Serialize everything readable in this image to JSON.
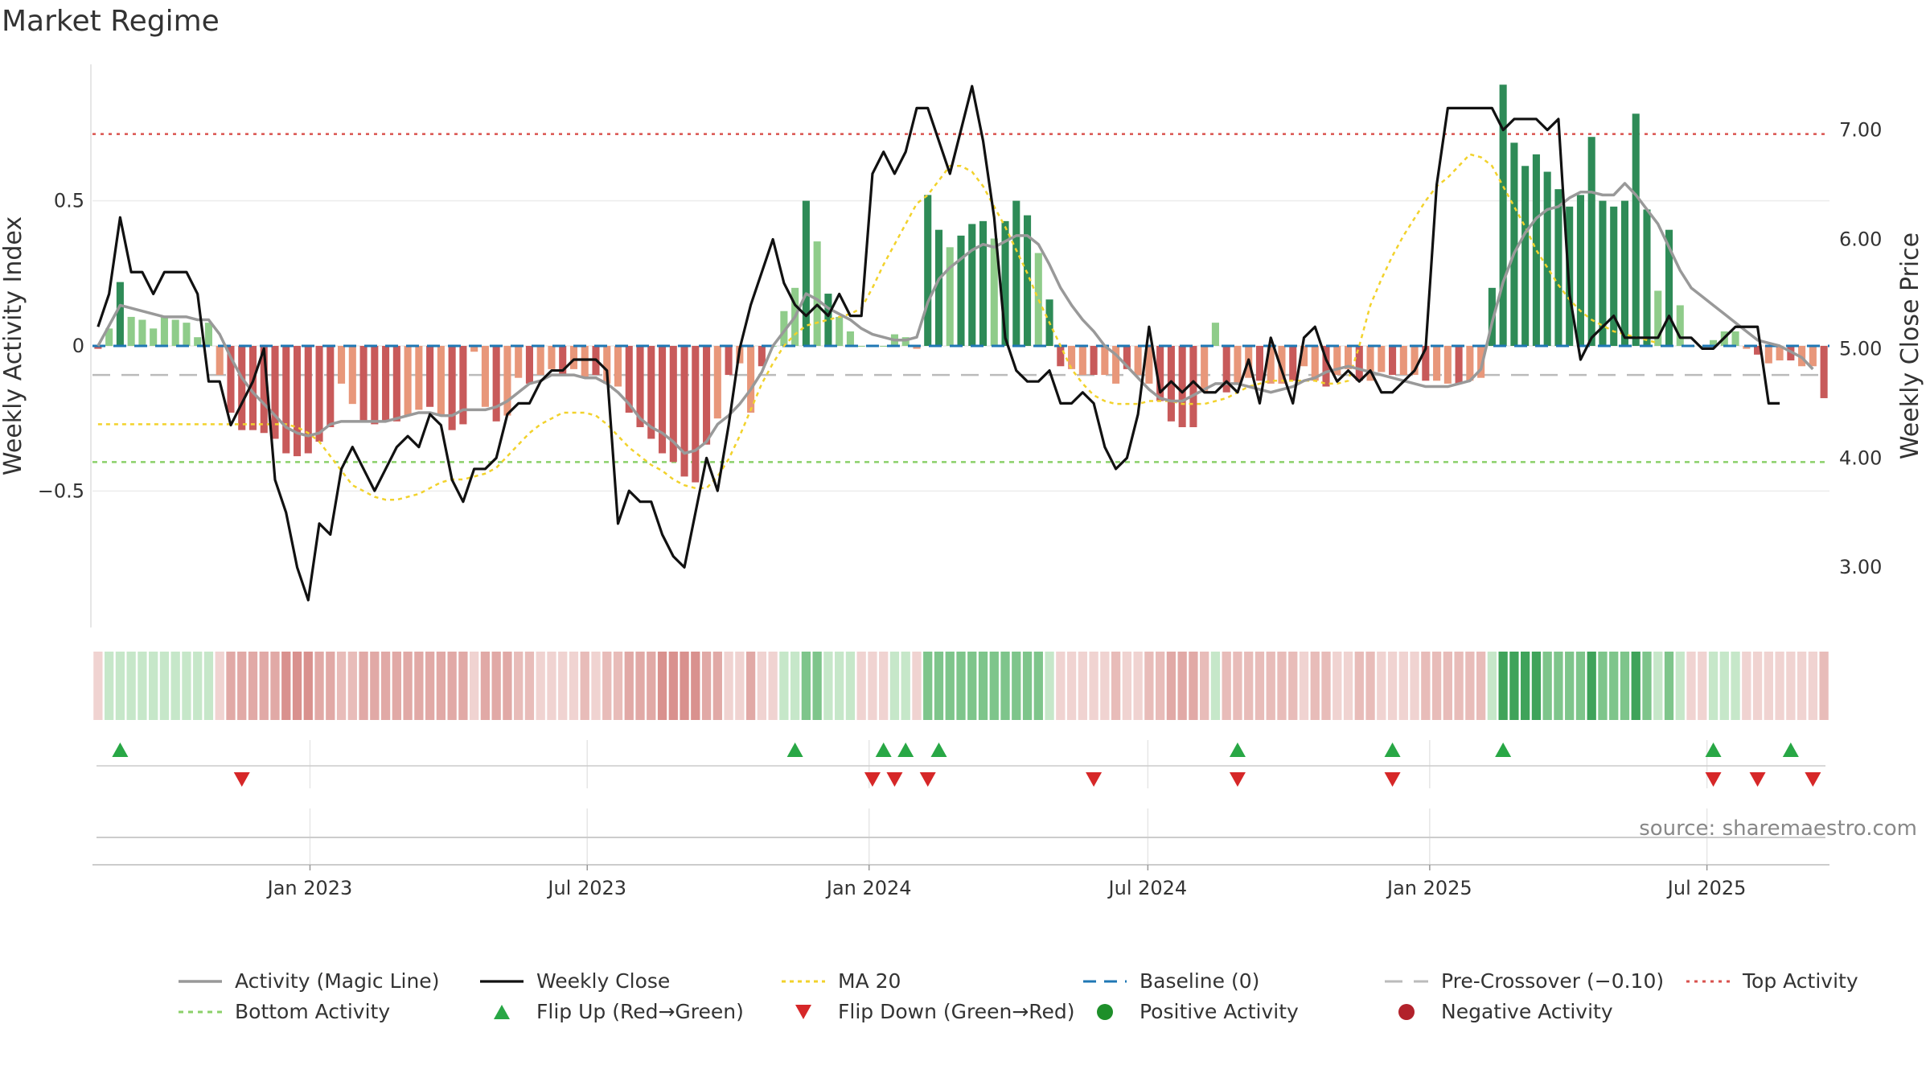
{
  "title": "Market Regime",
  "source": "source: sharemaestro.com",
  "chart_data": {
    "type": "bar",
    "start_date": "2022-08-12",
    "end_date": "2025-09-19",
    "y_left": {
      "label": "Weekly Activity Index",
      "lim": [
        -0.97,
        0.97
      ],
      "ticks": [
        0.5,
        0,
        -0.5
      ],
      "tick_labels": [
        "0.5",
        "0",
        "−0.5"
      ]
    },
    "y_right": {
      "label": "Weekly Close Price",
      "lim": [
        2.45,
        7.6
      ],
      "ticks": [
        7.0,
        6.0,
        5.0,
        4.0,
        3.0
      ],
      "tick_labels": [
        "7.00",
        "6.00",
        "5.00",
        "4.00",
        "3.00"
      ]
    },
    "x_ticks": [
      {
        "label": "Jan 2023",
        "date": "2023-01-01"
      },
      {
        "label": "Jul 2023",
        "date": "2023-07-01"
      },
      {
        "label": "Jan 2024",
        "date": "2024-01-01"
      },
      {
        "label": "Jul 2024",
        "date": "2024-07-01"
      },
      {
        "label": "Jan 2025",
        "date": "2025-01-01"
      },
      {
        "label": "Jul 2025",
        "date": "2025-07-01"
      }
    ],
    "reference_lines": {
      "baseline": 0,
      "pre_crossover": -0.1,
      "top_activity": 0.73,
      "bottom_activity": -0.4
    },
    "activity": [
      -0.01,
      0.06,
      0.22,
      0.1,
      0.09,
      0.06,
      0.1,
      0.09,
      0.08,
      0.03,
      0.08,
      -0.1,
      -0.23,
      -0.29,
      -0.29,
      -0.3,
      -0.32,
      -0.37,
      -0.38,
      -0.37,
      -0.33,
      -0.28,
      -0.13,
      -0.2,
      -0.26,
      -0.27,
      -0.26,
      -0.26,
      -0.24,
      -0.22,
      -0.21,
      -0.24,
      -0.29,
      -0.27,
      -0.02,
      -0.21,
      -0.26,
      -0.24,
      -0.11,
      -0.13,
      -0.1,
      -0.08,
      -0.1,
      -0.08,
      -0.11,
      -0.1,
      -0.13,
      -0.14,
      -0.23,
      -0.28,
      -0.32,
      -0.37,
      -0.4,
      -0.45,
      -0.47,
      -0.34,
      -0.25,
      -0.1,
      -0.06,
      -0.23,
      -0.07,
      0.0,
      0.12,
      0.2,
      0.5,
      0.36,
      0.18,
      0.1,
      0.05,
      0.0,
      0.0,
      0.0,
      0.04,
      0.03,
      -0.01,
      0.52,
      0.4,
      0.34,
      0.38,
      0.42,
      0.43,
      0.37,
      0.43,
      0.5,
      0.45,
      0.32,
      0.16,
      -0.07,
      -0.08,
      -0.1,
      -0.1,
      -0.1,
      -0.13,
      -0.08,
      -0.1,
      -0.13,
      -0.19,
      -0.26,
      -0.28,
      -0.28,
      -0.16,
      0.08,
      -0.16,
      -0.13,
      -0.11,
      -0.12,
      -0.13,
      -0.13,
      -0.12,
      -0.07,
      -0.12,
      -0.14,
      -0.1,
      -0.08,
      -0.12,
      -0.12,
      -0.09,
      -0.1,
      -0.1,
      -0.1,
      -0.12,
      -0.12,
      -0.13,
      -0.13,
      -0.12,
      -0.11,
      0.2,
      0.9,
      0.7,
      0.62,
      0.66,
      0.6,
      0.54,
      0.48,
      0.52,
      0.72,
      0.5,
      0.48,
      0.5,
      0.8,
      0.47,
      0.19,
      0.4,
      0.14,
      0.0,
      0.0,
      0.02,
      0.05,
      0.05,
      -0.01,
      -0.03,
      -0.06,
      -0.05,
      -0.05,
      -0.07,
      -0.07,
      -0.18
    ],
    "magic_line": [
      0.0,
      0.07,
      0.14,
      0.13,
      0.12,
      0.11,
      0.1,
      0.1,
      0.1,
      0.09,
      0.09,
      0.04,
      -0.04,
      -0.11,
      -0.16,
      -0.2,
      -0.24,
      -0.28,
      -0.3,
      -0.31,
      -0.3,
      -0.27,
      -0.26,
      -0.26,
      -0.26,
      -0.26,
      -0.26,
      -0.25,
      -0.24,
      -0.23,
      -0.23,
      -0.24,
      -0.24,
      -0.22,
      -0.22,
      -0.22,
      -0.21,
      -0.19,
      -0.16,
      -0.13,
      -0.12,
      -0.1,
      -0.1,
      -0.1,
      -0.11,
      -0.11,
      -0.13,
      -0.16,
      -0.2,
      -0.25,
      -0.28,
      -0.3,
      -0.33,
      -0.37,
      -0.36,
      -0.33,
      -0.27,
      -0.24,
      -0.2,
      -0.15,
      -0.09,
      0.0,
      0.05,
      0.1,
      0.18,
      0.16,
      0.13,
      0.11,
      0.09,
      0.06,
      0.04,
      0.03,
      0.02,
      0.02,
      0.03,
      0.15,
      0.23,
      0.27,
      0.3,
      0.33,
      0.35,
      0.34,
      0.36,
      0.38,
      0.38,
      0.35,
      0.28,
      0.2,
      0.14,
      0.09,
      0.05,
      0.0,
      -0.03,
      -0.07,
      -0.11,
      -0.15,
      -0.18,
      -0.19,
      -0.19,
      -0.17,
      -0.15,
      -0.13,
      -0.13,
      -0.13,
      -0.14,
      -0.15,
      -0.16,
      -0.15,
      -0.14,
      -0.12,
      -0.11,
      -0.09,
      -0.08,
      -0.07,
      -0.08,
      -0.09,
      -0.1,
      -0.11,
      -0.12,
      -0.13,
      -0.14,
      -0.14,
      -0.14,
      -0.13,
      -0.12,
      -0.08,
      0.08,
      0.22,
      0.32,
      0.39,
      0.44,
      0.47,
      0.48,
      0.51,
      0.53,
      0.53,
      0.52,
      0.52,
      0.56,
      0.52,
      0.47,
      0.42,
      0.34,
      0.26,
      0.2,
      0.17,
      0.14,
      0.11,
      0.08,
      0.05,
      0.02,
      0.01,
      0.0,
      -0.02,
      -0.04,
      -0.08
    ],
    "weekly_close": [
      5.2,
      5.5,
      6.2,
      5.7,
      5.7,
      5.5,
      5.7,
      5.7,
      5.7,
      5.5,
      4.7,
      4.7,
      4.3,
      4.5,
      4.7,
      5.0,
      3.8,
      3.5,
      3.0,
      2.7,
      3.4,
      3.3,
      3.9,
      4.1,
      3.9,
      3.7,
      3.9,
      4.1,
      4.2,
      4.1,
      4.4,
      4.3,
      3.8,
      3.6,
      3.9,
      3.9,
      4.0,
      4.4,
      4.5,
      4.5,
      4.7,
      4.8,
      4.8,
      4.9,
      4.9,
      4.9,
      4.8,
      3.4,
      3.7,
      3.6,
      3.6,
      3.3,
      3.1,
      3.0,
      3.5,
      4.0,
      3.7,
      4.3,
      5.0,
      5.4,
      5.7,
      6.0,
      5.6,
      5.4,
      5.3,
      5.4,
      5.3,
      5.5,
      5.3,
      5.3,
      6.6,
      6.8,
      6.6,
      6.8,
      7.2,
      7.2,
      6.9,
      6.6,
      7.0,
      7.4,
      6.9,
      6.2,
      5.1,
      4.8,
      4.7,
      4.7,
      4.8,
      4.5,
      4.5,
      4.6,
      4.5,
      4.1,
      3.9,
      4.0,
      4.4,
      5.2,
      4.6,
      4.7,
      4.6,
      4.7,
      4.6,
      4.6,
      4.7,
      4.6,
      4.9,
      4.5,
      5.1,
      4.8,
      4.5,
      5.1,
      5.2,
      4.9,
      4.7,
      4.8,
      4.7,
      4.8,
      4.6,
      4.6,
      4.7,
      4.8,
      5.0,
      6.5,
      7.2,
      7.2,
      7.2,
      7.2,
      7.2,
      7.0,
      7.1,
      7.1,
      7.1,
      7.0,
      7.1,
      5.5,
      4.9,
      5.1,
      5.2,
      5.3,
      5.1,
      5.1,
      5.1,
      5.1,
      5.3,
      5.1,
      5.1,
      5.0,
      5.0,
      5.1,
      5.2,
      5.2,
      5.2,
      4.5,
      4.5
    ],
    "ma20": [
      -0.27,
      -0.27,
      -0.27,
      -0.27,
      -0.27,
      -0.27,
      -0.27,
      -0.27,
      -0.27,
      -0.27,
      -0.27,
      -0.27,
      -0.27,
      -0.27,
      -0.27,
      -0.27,
      -0.27,
      -0.27,
      -0.28,
      -0.3,
      -0.33,
      -0.38,
      -0.43,
      -0.48,
      -0.5,
      -0.52,
      -0.53,
      -0.53,
      -0.52,
      -0.51,
      -0.49,
      -0.47,
      -0.46,
      -0.46,
      -0.45,
      -0.44,
      -0.42,
      -0.38,
      -0.34,
      -0.3,
      -0.27,
      -0.25,
      -0.23,
      -0.23,
      -0.23,
      -0.24,
      -0.27,
      -0.31,
      -0.35,
      -0.38,
      -0.41,
      -0.43,
      -0.46,
      -0.48,
      -0.49,
      -0.49,
      -0.45,
      -0.39,
      -0.31,
      -0.22,
      -0.13,
      -0.06,
      0.0,
      0.04,
      0.07,
      0.08,
      0.09,
      0.1,
      0.11,
      0.13,
      0.2,
      0.28,
      0.35,
      0.42,
      0.49,
      0.52,
      0.57,
      0.62,
      0.62,
      0.6,
      0.55,
      0.48,
      0.41,
      0.33,
      0.25,
      0.16,
      0.08,
      0.0,
      -0.08,
      -0.13,
      -0.17,
      -0.19,
      -0.2,
      -0.2,
      -0.2,
      -0.19,
      -0.19,
      -0.19,
      -0.2,
      -0.2,
      -0.2,
      -0.19,
      -0.18,
      -0.16,
      -0.14,
      -0.13,
      -0.12,
      -0.12,
      -0.12,
      -0.12,
      -0.12,
      -0.13,
      -0.13,
      -0.12,
      0.0,
      0.14,
      0.23,
      0.31,
      0.38,
      0.44,
      0.5,
      0.55,
      0.58,
      0.62,
      0.66,
      0.65,
      0.62,
      0.55,
      0.48,
      0.41,
      0.33,
      0.27,
      0.21,
      0.16,
      0.12,
      0.09,
      0.07,
      0.05,
      0.04,
      0.03,
      0.02,
      0.01
    ],
    "flip_up_index": [
      2,
      63,
      71,
      73,
      76,
      103,
      117,
      127,
      146,
      153
    ],
    "flip_down_index": [
      13,
      70,
      72,
      75,
      90,
      103,
      117,
      146,
      150,
      155
    ],
    "legend": [
      "Activity (Magic Line)",
      "Weekly Close",
      "MA 20",
      "Baseline (0)",
      "Pre-Crossover (−0.10)",
      "Top Activity",
      "Bottom Activity",
      "Flip Up (Red→Green)",
      "Flip Down (Green→Red)",
      "Positive Activity",
      "Negative Activity"
    ],
    "colors": {
      "pos_strong": "#2e8b57",
      "pos_mid": "#5cb36d",
      "pos_light": "#8fcc8a",
      "neg_strong": "#c85a5a",
      "neg_light": "#e8977a",
      "magic_line": "#999999",
      "weekly_close": "#111111",
      "ma20": "#f2d22c",
      "baseline": "#1f77b4",
      "pre_crossover": "#bbbbbb",
      "top_activity": "#d9534f",
      "bottom_activity": "#8bd06a",
      "flip_up": "#28a745",
      "flip_down": "#d62728",
      "pos_dot": "#1e8f2a",
      "neg_dot": "#b2222b"
    }
  }
}
